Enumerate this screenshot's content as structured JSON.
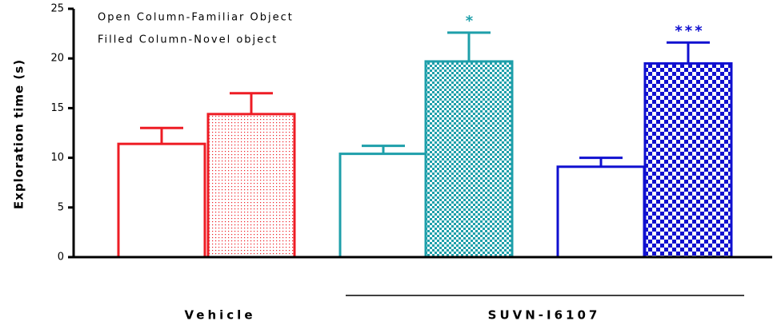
{
  "chart_data": {
    "type": "bar",
    "ylabel": "Exploration time (s)",
    "legend": [
      "Open Column-Familiar Object",
      "Filled Column-Novel object"
    ],
    "ylim": [
      0,
      25
    ],
    "yticks": [
      0,
      5,
      10,
      15,
      20,
      25
    ],
    "groups": [
      "Vehicle",
      "SUVN-I6107"
    ],
    "bars": [
      {
        "color": "#ee1c24",
        "fill": "open",
        "value": 11.4,
        "error": 1.6
      },
      {
        "color": "#ee1c24",
        "fill": "dots",
        "value": 14.4,
        "error": 2.1
      },
      {
        "color": "#1e9faa",
        "fill": "open",
        "value": 10.4,
        "error": 0.8
      },
      {
        "color": "#1e9faa",
        "fill": "fine-check",
        "value": 19.7,
        "error": 2.9,
        "annotation": "*"
      },
      {
        "color": "#1010d0",
        "fill": "open",
        "value": 9.1,
        "error": 0.9
      },
      {
        "color": "#1010d0",
        "fill": "check",
        "value": 19.5,
        "error": 2.1,
        "annotation": "***"
      }
    ]
  }
}
